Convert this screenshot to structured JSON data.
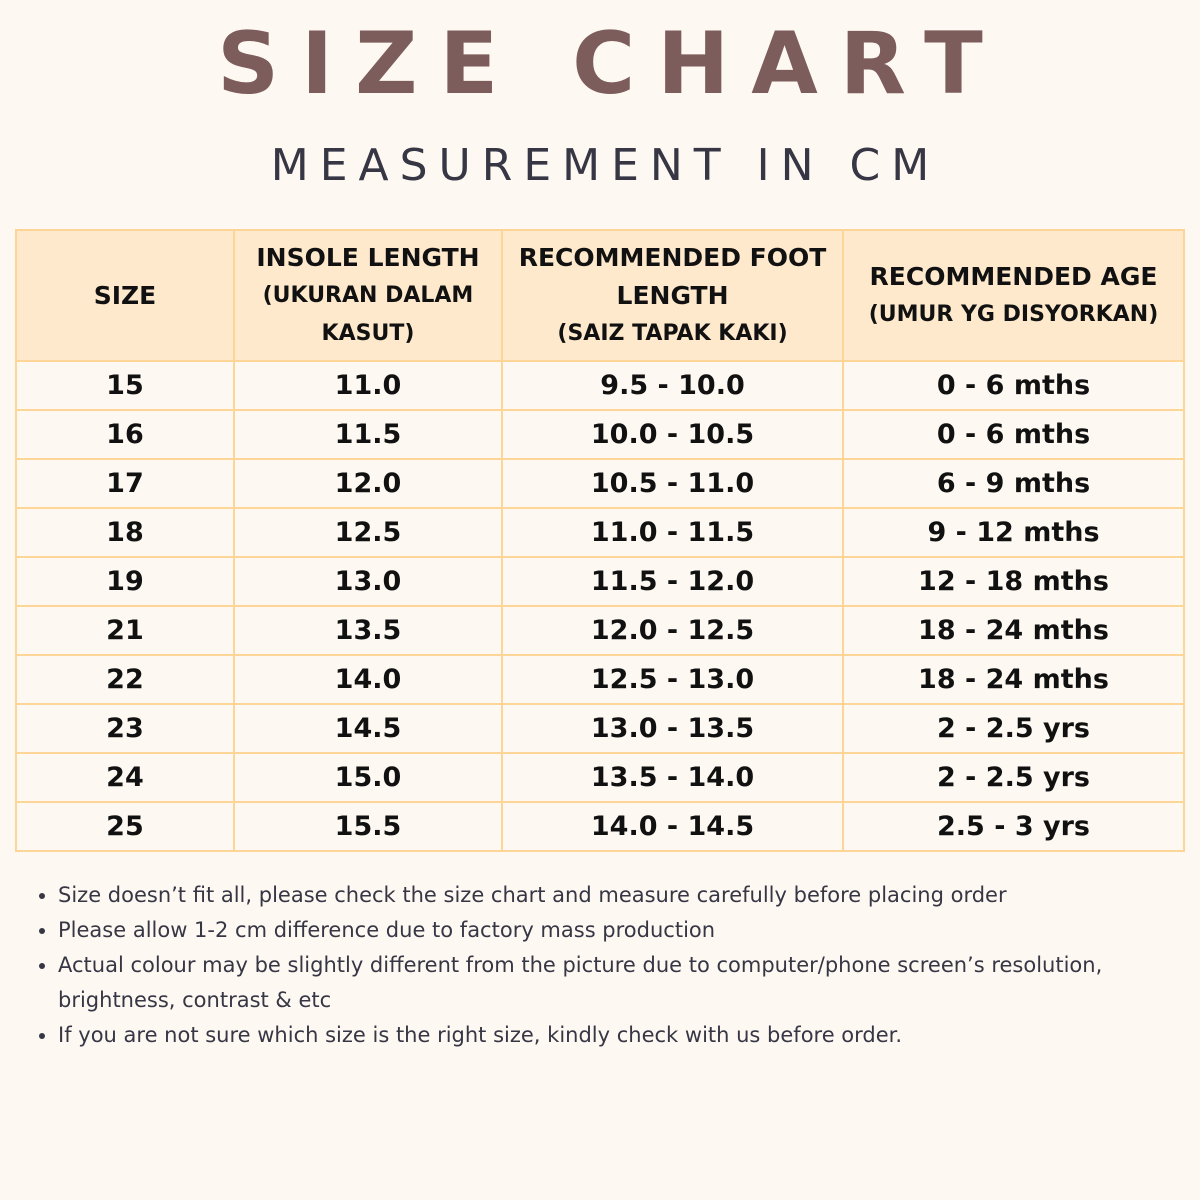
{
  "title": "SIZE CHART",
  "subtitle": "MEASUREMENT IN CM",
  "colors": {
    "background": "#fdf8f1",
    "header_fill": "#fee9cd",
    "border": "#fdd597",
    "title": "#7d5c5c",
    "text": "#363645"
  },
  "table": {
    "headers": [
      {
        "main": "SIZE",
        "sub": ""
      },
      {
        "main": "INSOLE LENGTH",
        "sub": "(UKURAN DALAM KASUT)"
      },
      {
        "main": "RECOMMENDED FOOT LENGTH",
        "sub": "(SAIZ TAPAK KAKI)"
      },
      {
        "main": "RECOMMENDED AGE",
        "sub": "(UMUR YG DISYORKAN)"
      }
    ],
    "rows": [
      [
        "15",
        "11.0",
        "9.5 - 10.0",
        "0 - 6 mths"
      ],
      [
        "16",
        "11.5",
        "10.0 - 10.5",
        "0 - 6 mths"
      ],
      [
        "17",
        "12.0",
        "10.5 - 11.0",
        "6 - 9 mths"
      ],
      [
        "18",
        "12.5",
        "11.0 - 11.5",
        "9 - 12 mths"
      ],
      [
        "19",
        "13.0",
        "11.5 - 12.0",
        "12 - 18 mths"
      ],
      [
        "21",
        "13.5",
        "12.0 - 12.5",
        "18 - 24 mths"
      ],
      [
        "22",
        "14.0",
        "12.5 - 13.0",
        "18 - 24 mths"
      ],
      [
        "23",
        "14.5",
        "13.0 - 13.5",
        "2 - 2.5 yrs"
      ],
      [
        "24",
        "15.0",
        "13.5 - 14.0",
        "2 - 2.5 yrs"
      ],
      [
        "25",
        "15.5",
        "14.0 - 14.5",
        "2.5 - 3 yrs"
      ]
    ]
  },
  "notes": [
    "Size doesn’t fit all, please check the size chart and measure carefully before placing order",
    "Please allow 1-2 cm difference due to factory mass production",
    "Actual colour may be slightly different from the picture due to computer/phone screen’s resolution, brightness, contrast & etc",
    "If you are not sure which size is the right size, kindly check with us before order."
  ]
}
